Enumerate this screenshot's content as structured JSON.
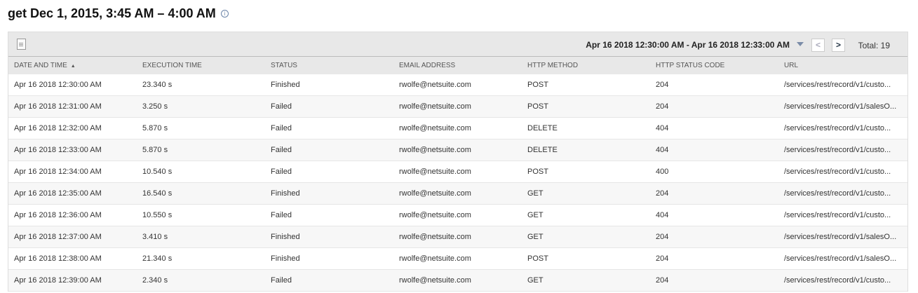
{
  "title": "get Dec 1, 2015, 3:45 AM – 4:00 AM",
  "toolbar": {
    "range": "Apr 16 2018 12:30:00 AM - Apr 16 2018 12:33:00 AM",
    "prev": "<",
    "next": ">",
    "total": "Total: 19"
  },
  "columns": [
    "DATE AND TIME",
    "EXECUTION TIME",
    "STATUS",
    "EMAIL ADDRESS",
    "HTTP METHOD",
    "HTTP STATUS CODE",
    "URL"
  ],
  "sort_indicator": "▲",
  "rows": [
    [
      "Apr 16 2018 12:30:00 AM",
      "23.340 s",
      "Finished",
      "rwolfe@netsuite.com",
      "POST",
      "204",
      "/services/rest/record/v1/custo..."
    ],
    [
      "Apr 16 2018 12:31:00 AM",
      "3.250 s",
      "Failed",
      "rwolfe@netsuite.com",
      "POST",
      "204",
      "/services/rest/record/v1/salesO..."
    ],
    [
      "Apr 16 2018 12:32:00 AM",
      "5.870 s",
      "Failed",
      "rwolfe@netsuite.com",
      "DELETE",
      "404",
      "/services/rest/record/v1/custo..."
    ],
    [
      "Apr 16 2018 12:33:00 AM",
      "5.870 s",
      "Failed",
      "rwolfe@netsuite.com",
      "DELETE",
      "404",
      "/services/rest/record/v1/custo..."
    ],
    [
      "Apr 16 2018 12:34:00 AM",
      "10.540 s",
      "Failed",
      "rwolfe@netsuite.com",
      "POST",
      "400",
      "/services/rest/record/v1/custo..."
    ],
    [
      "Apr 16 2018 12:35:00 AM",
      "16.540 s",
      "Finished",
      "rwolfe@netsuite.com",
      "GET",
      "204",
      "/services/rest/record/v1/custo..."
    ],
    [
      "Apr 16 2018 12:36:00 AM",
      "10.550 s",
      "Failed",
      "rwolfe@netsuite.com",
      "GET",
      "404",
      "/services/rest/record/v1/custo..."
    ],
    [
      "Apr 16 2018 12:37:00 AM",
      "3.410 s",
      "Finished",
      "rwolfe@netsuite.com",
      "GET",
      "204",
      "/services/rest/record/v1/salesO..."
    ],
    [
      "Apr 16 2018 12:38:00 AM",
      "21.340 s",
      "Finished",
      "rwolfe@netsuite.com",
      "POST",
      "204",
      "/services/rest/record/v1/salesO..."
    ],
    [
      "Apr 16 2018 12:39:00 AM",
      "2.340 s",
      "Failed",
      "rwolfe@netsuite.com",
      "GET",
      "204",
      "/services/rest/record/v1/custo..."
    ]
  ]
}
